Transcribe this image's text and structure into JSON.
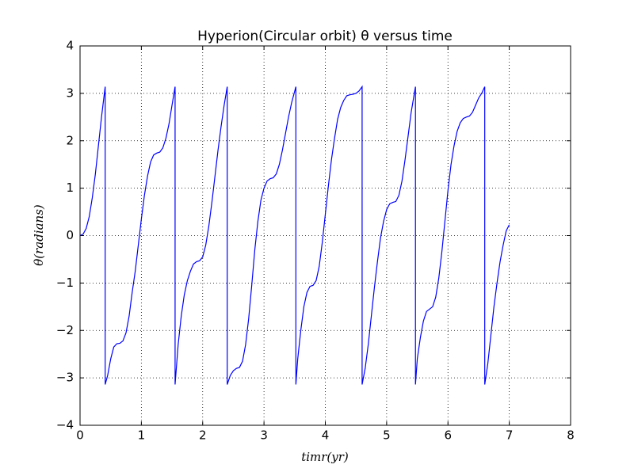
{
  "chart_data": {
    "type": "line",
    "title": "Hyperion(Circular orbit) θ versus time",
    "xlabel": "timr(yr)",
    "ylabel": "θ(radians)",
    "color": "#0000ff",
    "grid": true,
    "xlim": [
      0,
      8
    ],
    "ylim": [
      -4,
      4
    ],
    "xticks": [
      0,
      1,
      2,
      3,
      4,
      5,
      6,
      7,
      8
    ],
    "yticks": [
      {
        "value": -4,
        "label": "−4"
      },
      {
        "value": -3,
        "label": "−3"
      },
      {
        "value": -2,
        "label": "−2"
      },
      {
        "value": -1,
        "label": "−1"
      },
      0,
      1,
      2,
      3,
      4
    ],
    "x": [
      0,
      0.05,
      0.1,
      0.15,
      0.2,
      0.25,
      0.3,
      0.35,
      0.41,
      0.41,
      0.45,
      0.5,
      0.55,
      0.6,
      0.65,
      0.7,
      0.75,
      0.8,
      0.85,
      0.9,
      0.95,
      1.0,
      1.05,
      1.1,
      1.15,
      1.2,
      1.25,
      1.3,
      1.35,
      1.4,
      1.45,
      1.5,
      1.55,
      1.55,
      1.6,
      1.65,
      1.7,
      1.75,
      1.8,
      1.85,
      1.9,
      1.95,
      2.0,
      2.05,
      2.1,
      2.15,
      2.2,
      2.25,
      2.3,
      2.35,
      2.4,
      2.4,
      2.45,
      2.5,
      2.55,
      2.6,
      2.65,
      2.7,
      2.75,
      2.8,
      2.85,
      2.9,
      2.95,
      3.0,
      3.05,
      3.1,
      3.15,
      3.2,
      3.25,
      3.3,
      3.35,
      3.4,
      3.45,
      3.52,
      3.52,
      3.55,
      3.6,
      3.65,
      3.7,
      3.75,
      3.8,
      3.85,
      3.9,
      3.95,
      4.0,
      4.05,
      4.1,
      4.15,
      4.2,
      4.25,
      4.3,
      4.35,
      4.4,
      4.45,
      4.5,
      4.55,
      4.6,
      4.6,
      4.65,
      4.7,
      4.75,
      4.8,
      4.85,
      4.9,
      4.95,
      5.0,
      5.05,
      5.1,
      5.15,
      5.2,
      5.25,
      5.3,
      5.35,
      5.4,
      5.47,
      5.47,
      5.5,
      5.55,
      5.6,
      5.65,
      5.7,
      5.75,
      5.8,
      5.85,
      5.9,
      5.95,
      6.0,
      6.05,
      6.1,
      6.15,
      6.2,
      6.25,
      6.3,
      6.35,
      6.4,
      6.45,
      6.5,
      6.55,
      6.6,
      6.6,
      6.65,
      6.7,
      6.75,
      6.8,
      6.85,
      6.9,
      6.95,
      7.0
    ],
    "values": [
      0,
      0.03,
      0.15,
      0.4,
      0.8,
      1.3,
      1.9,
      2.5,
      3.14,
      -3.14,
      -2.95,
      -2.6,
      -2.35,
      -2.28,
      -2.27,
      -2.22,
      -2.05,
      -1.7,
      -1.2,
      -0.75,
      -0.2,
      0.35,
      0.85,
      1.25,
      1.55,
      1.7,
      1.74,
      1.76,
      1.85,
      2.05,
      2.35,
      2.75,
      3.14,
      -3.14,
      -2.3,
      -1.7,
      -1.25,
      -0.95,
      -0.75,
      -0.6,
      -0.55,
      -0.53,
      -0.45,
      -0.2,
      0.2,
      0.7,
      1.25,
      1.8,
      2.3,
      2.75,
      3.14,
      -3.14,
      -2.95,
      -2.85,
      -2.8,
      -2.78,
      -2.65,
      -2.3,
      -1.75,
      -1.05,
      -0.3,
      0.3,
      0.75,
      1.0,
      1.15,
      1.2,
      1.22,
      1.3,
      1.5,
      1.8,
      2.15,
      2.5,
      2.8,
      3.14,
      -3.14,
      -2.6,
      -2.0,
      -1.5,
      -1.2,
      -1.07,
      -1.05,
      -0.95,
      -0.65,
      -0.15,
      0.45,
      1.05,
      1.6,
      2.05,
      2.45,
      2.7,
      2.85,
      2.95,
      2.97,
      2.98,
      3.0,
      3.05,
      3.14,
      -3.14,
      -2.8,
      -2.3,
      -1.7,
      -1.1,
      -0.55,
      -0.05,
      0.3,
      0.55,
      0.67,
      0.7,
      0.72,
      0.85,
      1.15,
      1.6,
      2.1,
      2.6,
      3.14,
      -3.14,
      -2.6,
      -2.15,
      -1.8,
      -1.6,
      -1.55,
      -1.5,
      -1.3,
      -0.9,
      -0.35,
      0.3,
      0.95,
      1.5,
      1.9,
      2.2,
      2.38,
      2.47,
      2.5,
      2.52,
      2.6,
      2.75,
      2.9,
      3.0,
      3.14,
      -3.14,
      -2.7,
      -2.1,
      -1.5,
      -1.0,
      -0.55,
      -0.2,
      0.1,
      0.23
    ]
  }
}
